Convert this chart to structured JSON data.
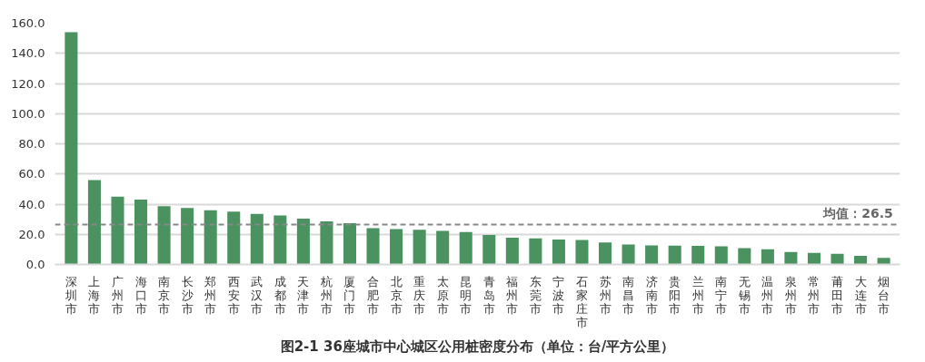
{
  "chart_data": {
    "type": "bar",
    "title": "图2-1 36座城市中心城区公用桩密度分布（单位：台/平方公里）",
    "categories": [
      "深圳市",
      "上海市",
      "广州市",
      "海口市",
      "南京市",
      "长沙市",
      "郑州市",
      "西安市",
      "武汉市",
      "成都市",
      "天津市",
      "杭州市",
      "厦门市",
      "合肥市",
      "北京市",
      "重庆市",
      "太原市",
      "昆明市",
      "青岛市",
      "福州市",
      "东莞市",
      "宁波市",
      "石家庄市",
      "苏州市",
      "南昌市",
      "济南市",
      "贵阳市",
      "兰州市",
      "南宁市",
      "无锡市",
      "温州市",
      "泉州市",
      "常州市",
      "莆田市",
      "大连市",
      "烟台市"
    ],
    "values": [
      154,
      56,
      45,
      43,
      38.7,
      37.5,
      36,
      35,
      33.6,
      32.5,
      30.4,
      28.5,
      27.3,
      24,
      23.5,
      23,
      22.2,
      21.5,
      19.6,
      17.7,
      17.3,
      16.6,
      16.2,
      14.6,
      13.3,
      12.6,
      12.5,
      12.3,
      12,
      10.8,
      10.1,
      8.2,
      7.6,
      7,
      5.7,
      4.4
    ],
    "color": "#4a9260",
    "ylim": [
      0,
      160
    ],
    "yticks": [
      {
        "value": 0,
        "label": "0.0"
      },
      {
        "value": 20,
        "label": "20.0"
      },
      {
        "value": 40,
        "label": "40.0"
      },
      {
        "value": 60,
        "label": "60.0"
      },
      {
        "value": 80,
        "label": "80.0"
      },
      {
        "value": 100,
        "label": "100.0"
      },
      {
        "value": 120,
        "label": "120.0"
      },
      {
        "value": 140,
        "label": "140.0"
      },
      {
        "value": 160,
        "label": "160.0"
      }
    ],
    "ref_lines": [
      {
        "axis": "y",
        "value": 26.5,
        "label": "均值：26.5",
        "color": "#888888",
        "line_style": "dashed"
      }
    ],
    "grid": "y"
  }
}
